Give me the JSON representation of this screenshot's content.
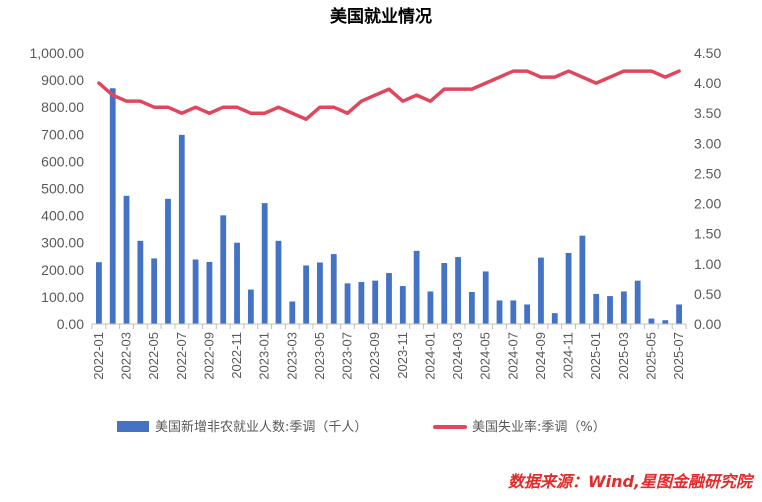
{
  "chart_data": {
    "type": "bar+line",
    "title": "美国就业情况",
    "source": "数据来源：Wind,星图金融研究院",
    "categories": [
      "2022-01",
      "2022-02",
      "2022-03",
      "2022-04",
      "2022-05",
      "2022-06",
      "2022-07",
      "2022-08",
      "2022-09",
      "2022-10",
      "2022-11",
      "2022-12",
      "2023-01",
      "2023-02",
      "2023-03",
      "2023-04",
      "2023-05",
      "2023-06",
      "2023-07",
      "2023-08",
      "2023-09",
      "2023-10",
      "2023-11",
      "2023-12",
      "2024-01",
      "2024-02",
      "2024-03",
      "2024-04",
      "2024-05",
      "2024-06",
      "2024-07",
      "2024-08",
      "2024-09",
      "2024-10",
      "2024-11",
      "2024-12",
      "2025-01",
      "2025-02",
      "2025-03",
      "2025-04",
      "2025-05",
      "2025-06",
      "2025-07"
    ],
    "x_tick_labels": [
      "2022-01",
      "2022-03",
      "2022-05",
      "2022-07",
      "2022-09",
      "2022-11",
      "2023-01",
      "2023-03",
      "2023-05",
      "2023-07",
      "2023-09",
      "2023-11",
      "2024-01",
      "2024-03",
      "2024-05",
      "2024-07",
      "2024-09",
      "2024-11",
      "2025-01",
      "2025-03",
      "2025-05",
      "2025-07"
    ],
    "series": [
      {
        "name": "美国新增非农就业人数:季调（千人）",
        "type": "bar",
        "axis": "left",
        "color": "#4472c4",
        "values": [
          228,
          870,
          473,
          307,
          242,
          462,
          698,
          238,
          229,
          401,
          300,
          127,
          446,
          307,
          83,
          216,
          227,
          258,
          150,
          155,
          160,
          188,
          140,
          270,
          120,
          225,
          247,
          118,
          194,
          87,
          87,
          72,
          245,
          40,
          262,
          326,
          111,
          103,
          120,
          160,
          20,
          14,
          72
        ]
      },
      {
        "name": "美国失业率:季调（%）",
        "type": "line",
        "axis": "right",
        "color": "#e0475d",
        "values": [
          4.0,
          3.8,
          3.7,
          3.7,
          3.6,
          3.6,
          3.5,
          3.6,
          3.5,
          3.6,
          3.6,
          3.5,
          3.5,
          3.6,
          3.5,
          3.4,
          3.6,
          3.6,
          3.5,
          3.7,
          3.8,
          3.9,
          3.7,
          3.8,
          3.7,
          3.9,
          3.9,
          3.9,
          4.0,
          4.1,
          4.2,
          4.2,
          4.1,
          4.1,
          4.2,
          4.1,
          4.0,
          4.1,
          4.2,
          4.2,
          4.2,
          4.1,
          4.2
        ]
      }
    ],
    "y_left": {
      "min": 0,
      "max": 1000,
      "ticks": [
        "0.00",
        "100.00",
        "200.00",
        "300.00",
        "400.00",
        "500.00",
        "600.00",
        "700.00",
        "800.00",
        "900.00",
        "1,000.00"
      ]
    },
    "y_right": {
      "min": 0,
      "max": 4.5,
      "ticks": [
        "0.00",
        "0.50",
        "1.00",
        "1.50",
        "2.00",
        "2.50",
        "3.00",
        "3.50",
        "4.00",
        "4.50"
      ]
    },
    "grid": false,
    "legend_position": "bottom"
  }
}
